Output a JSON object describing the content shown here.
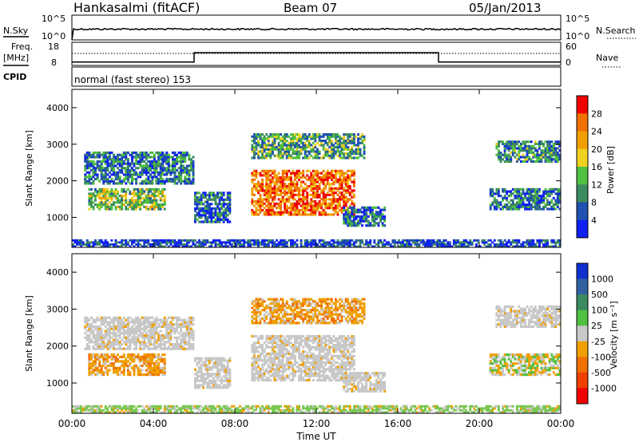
{
  "header": {
    "station": "Hankasalmi (fitACF)",
    "beam": "Beam 07",
    "date": "05/Jan/2013"
  },
  "noise_panel": {
    "left_label": "N.Sky",
    "right_label": "N.Search",
    "left_ticks": [
      "10^5",
      "10^0"
    ],
    "right_ticks": [
      "10^5",
      "10^0"
    ]
  },
  "freq_panel": {
    "left_label_1": "Freq.",
    "left_label_2": "[MHz]",
    "right_label": "Nave",
    "left_ticks": [
      "18",
      "8"
    ],
    "right_ticks": [
      "60",
      "0"
    ],
    "freq_segments": [
      {
        "start_h": 0,
        "end_h": 6,
        "level": 0.15
      },
      {
        "start_h": 6,
        "end_h": 18,
        "level": 0.55
      },
      {
        "start_h": 18,
        "end_h": 24,
        "level": 0.15
      }
    ]
  },
  "cpid": {
    "label": "CPID",
    "text": "normal (fast stereo) 153"
  },
  "chart_data": [
    {
      "type": "heatmap",
      "name": "power",
      "ylabel": "Slant Range [km]",
      "xlabel": "",
      "xlim": [
        0,
        24
      ],
      "ylim": [
        180,
        4500
      ],
      "y_ticks": [
        "1000",
        "2000",
        "3000",
        "4000"
      ],
      "y_tick_values": [
        1000,
        2000,
        3000,
        4000
      ],
      "colorbar_label": "Power [dB]",
      "colorbar_ticks": [
        "4",
        "8",
        "12",
        "16",
        "20",
        "24",
        "28"
      ],
      "colorbar_colors": [
        "#1020f0",
        "#2050b0",
        "#3c8a60",
        "#50c040",
        "#f0d020",
        "#f0a000",
        "#f07000",
        "#f00000"
      ],
      "regions": [
        {
          "t0": 0.6,
          "t1": 6.0,
          "r0": 1900,
          "r1": 2800,
          "level": 0.25
        },
        {
          "t0": 0.8,
          "t1": 4.6,
          "r0": 1200,
          "r1": 1800,
          "level": 0.45
        },
        {
          "t0": 6.0,
          "t1": 7.8,
          "r0": 850,
          "r1": 1700,
          "level": 0.2
        },
        {
          "t0": 8.8,
          "t1": 14.4,
          "r0": 2600,
          "r1": 3300,
          "level": 0.35
        },
        {
          "t0": 8.8,
          "t1": 13.9,
          "r0": 1050,
          "r1": 2300,
          "level": 0.85
        },
        {
          "t0": 13.3,
          "t1": 15.4,
          "r0": 750,
          "r1": 1300,
          "level": 0.25
        },
        {
          "t0": 20.5,
          "t1": 24.0,
          "r0": 1200,
          "r1": 1800,
          "level": 0.25
        },
        {
          "t0": 20.8,
          "t1": 24.0,
          "r0": 2500,
          "r1": 3100,
          "level": 0.3
        },
        {
          "t0": 0.0,
          "t1": 24.0,
          "r0": 180,
          "r1": 400,
          "level": 0.15
        }
      ]
    },
    {
      "type": "heatmap",
      "name": "velocity",
      "ylabel": "Slant Range [km]",
      "xlabel": "Time UT",
      "xlim": [
        0,
        24
      ],
      "ylim": [
        180,
        4500
      ],
      "x_ticks": [
        "00:00",
        "04:00",
        "08:00",
        "12:00",
        "16:00",
        "20:00",
        "00:00"
      ],
      "x_tick_values": [
        0,
        4,
        8,
        12,
        16,
        20,
        24
      ],
      "y_ticks": [
        "1000",
        "2000",
        "3000",
        "4000"
      ],
      "y_tick_values": [
        1000,
        2000,
        3000,
        4000
      ],
      "colorbar_label": "Velocity [m s⁻¹]",
      "colorbar_ticks": [
        "1000",
        "500",
        "100",
        "25",
        "-25",
        "-100",
        "-500",
        "-1000"
      ],
      "colorbar_colors": [
        "#1030d0",
        "#3060a0",
        "#3c8a60",
        "#50c040",
        "#c8c8c8",
        "#f0a000",
        "#f07000",
        "#f04000",
        "#f00000"
      ],
      "regions": [
        {
          "t0": 0.6,
          "t1": 6.0,
          "r0": 1900,
          "r1": 2800,
          "kind": "grey"
        },
        {
          "t0": 0.8,
          "t1": 4.6,
          "r0": 1200,
          "r1": 1800,
          "kind": "orange"
        },
        {
          "t0": 6.0,
          "t1": 7.8,
          "r0": 850,
          "r1": 1700,
          "kind": "grey"
        },
        {
          "t0": 8.8,
          "t1": 14.4,
          "r0": 2600,
          "r1": 3300,
          "kind": "orange"
        },
        {
          "t0": 8.8,
          "t1": 13.9,
          "r0": 1050,
          "r1": 2300,
          "kind": "grey"
        },
        {
          "t0": 13.3,
          "t1": 15.4,
          "r0": 750,
          "r1": 1300,
          "kind": "grey"
        },
        {
          "t0": 20.5,
          "t1": 24.0,
          "r0": 1200,
          "r1": 1800,
          "kind": "mixed"
        },
        {
          "t0": 20.8,
          "t1": 24.0,
          "r0": 2500,
          "r1": 3100,
          "kind": "grey"
        },
        {
          "t0": 0.0,
          "t1": 24.0,
          "r0": 180,
          "r1": 400,
          "kind": "green"
        }
      ]
    }
  ]
}
